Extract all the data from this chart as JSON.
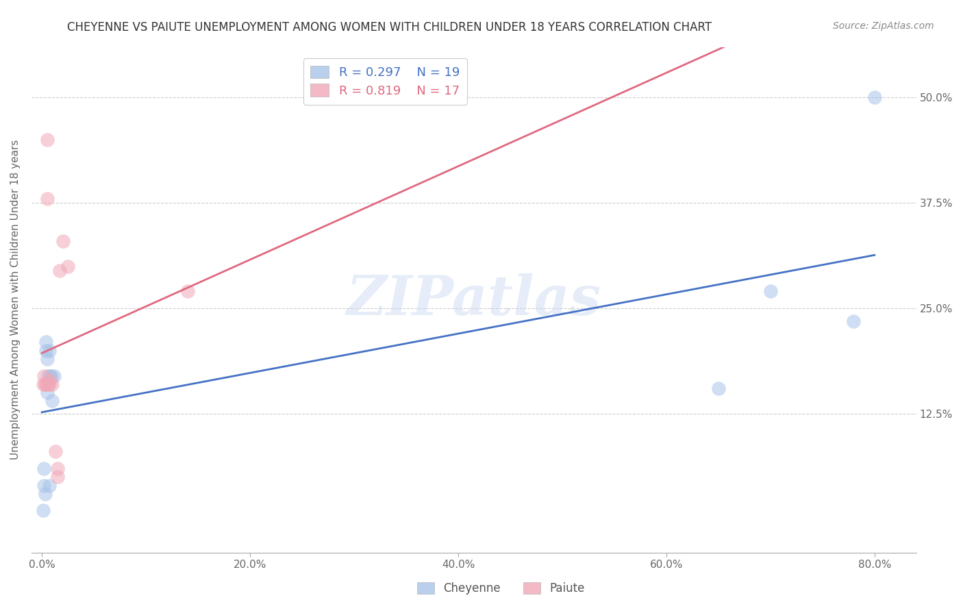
{
  "title": "CHEYENNE VS PAIUTE UNEMPLOYMENT AMONG WOMEN WITH CHILDREN UNDER 18 YEARS CORRELATION CHART",
  "source": "Source: ZipAtlas.com",
  "ylabel": "Unemployment Among Women with Children Under 18 years",
  "xtick_vals": [
    0.0,
    0.2,
    0.4,
    0.6,
    0.8
  ],
  "xtick_labels": [
    "0.0%",
    "20.0%",
    "40.0%",
    "60.0%",
    "80.0%"
  ],
  "ytick_vals": [
    0.125,
    0.25,
    0.375,
    0.5
  ],
  "ytick_labels": [
    "12.5%",
    "25.0%",
    "37.5%",
    "50.0%"
  ],
  "xlim": [
    -0.01,
    0.84
  ],
  "ylim": [
    -0.04,
    0.56
  ],
  "cheyenne_color": "#a8c4e8",
  "paiute_color": "#f0a8b8",
  "cheyenne_edge_color": "#7aaad8",
  "paiute_edge_color": "#e080a0",
  "cheyenne_line_color": "#4472c4",
  "paiute_line_color": "#e06880",
  "watermark_text": "ZIPatlas",
  "legend_R_cheyenne": "0.297",
  "legend_N_cheyenne": "19",
  "legend_R_paiute": "0.819",
  "legend_N_paiute": "17",
  "cheyenne_x": [
    0.001,
    0.002,
    0.002,
    0.003,
    0.004,
    0.004,
    0.005,
    0.005,
    0.006,
    0.007,
    0.007,
    0.008,
    0.009,
    0.01,
    0.012,
    0.65,
    0.7,
    0.78,
    0.8
  ],
  "cheyenne_y": [
    0.01,
    0.04,
    0.06,
    0.03,
    0.2,
    0.21,
    0.19,
    0.15,
    0.17,
    0.2,
    0.04,
    0.17,
    0.17,
    0.14,
    0.17,
    0.155,
    0.27,
    0.235,
    0.5
  ],
  "paiute_x": [
    0.001,
    0.002,
    0.003,
    0.004,
    0.005,
    0.005,
    0.006,
    0.007,
    0.008,
    0.01,
    0.013,
    0.015,
    0.015,
    0.017,
    0.02,
    0.025,
    0.14
  ],
  "paiute_y": [
    0.16,
    0.17,
    0.16,
    0.16,
    0.45,
    0.38,
    0.16,
    0.16,
    0.165,
    0.16,
    0.08,
    0.06,
    0.05,
    0.295,
    0.33,
    0.3,
    0.27
  ]
}
